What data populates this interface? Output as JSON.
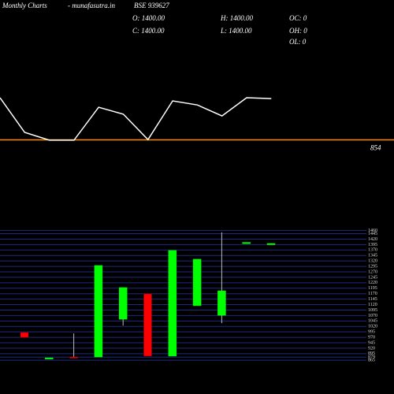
{
  "header": {
    "title": "Monthly Charts",
    "site": "- munafasutra.in",
    "symbol": "BSE 939627",
    "open": "O: 1400.00",
    "high": "H: 1400.00",
    "close": "C: 1400.00",
    "low": "L: 1400.00",
    "oc": "OC: 0",
    "oh": "OH: 0",
    "ol": "OL: 0"
  },
  "chart_data": [
    {
      "type": "line",
      "categories": [
        null,
        null,
        null,
        null,
        null,
        null,
        null,
        null,
        null,
        null,
        null,
        null
      ],
      "values": [
        1000,
        880,
        853,
        853,
        967,
        943,
        855,
        989,
        975,
        937,
        1000,
        997
      ],
      "color": "#ffffff",
      "ylim": [
        820,
        1120
      ],
      "reference_value": 854,
      "reference_color": "#ff8c00"
    },
    {
      "type": "candlestick",
      "categories": [
        null,
        null,
        null,
        null,
        null,
        null,
        null,
        null,
        null,
        null,
        null
      ],
      "open": [
        992,
        876,
        880,
        880,
        1053,
        1169,
        884,
        1115,
        1071,
        1405,
        1400
      ],
      "high": [
        992,
        876,
        988,
        1299,
        1198,
        1169,
        1368,
        1328,
        1451,
        1405,
        1400
      ],
      "low": [
        970,
        876,
        878,
        880,
        1024,
        884,
        884,
        1115,
        1035,
        1405,
        1400
      ],
      "close": [
        970,
        876,
        878,
        1299,
        1198,
        884,
        1368,
        1328,
        1183,
        1405,
        1400
      ],
      "up_color": "#00ff00",
      "down_color": "#ff0000",
      "grid": true,
      "grid_color": "#1c2a80",
      "ylim": [
        862,
        1465
      ],
      "yticks": [
        1460,
        1445,
        1420,
        1395,
        1370,
        1345,
        1320,
        1295,
        1270,
        1245,
        1220,
        1195,
        1170,
        1145,
        1120,
        1095,
        1070,
        1045,
        1020,
        995,
        970,
        945,
        920,
        895,
        879,
        865
      ]
    }
  ]
}
